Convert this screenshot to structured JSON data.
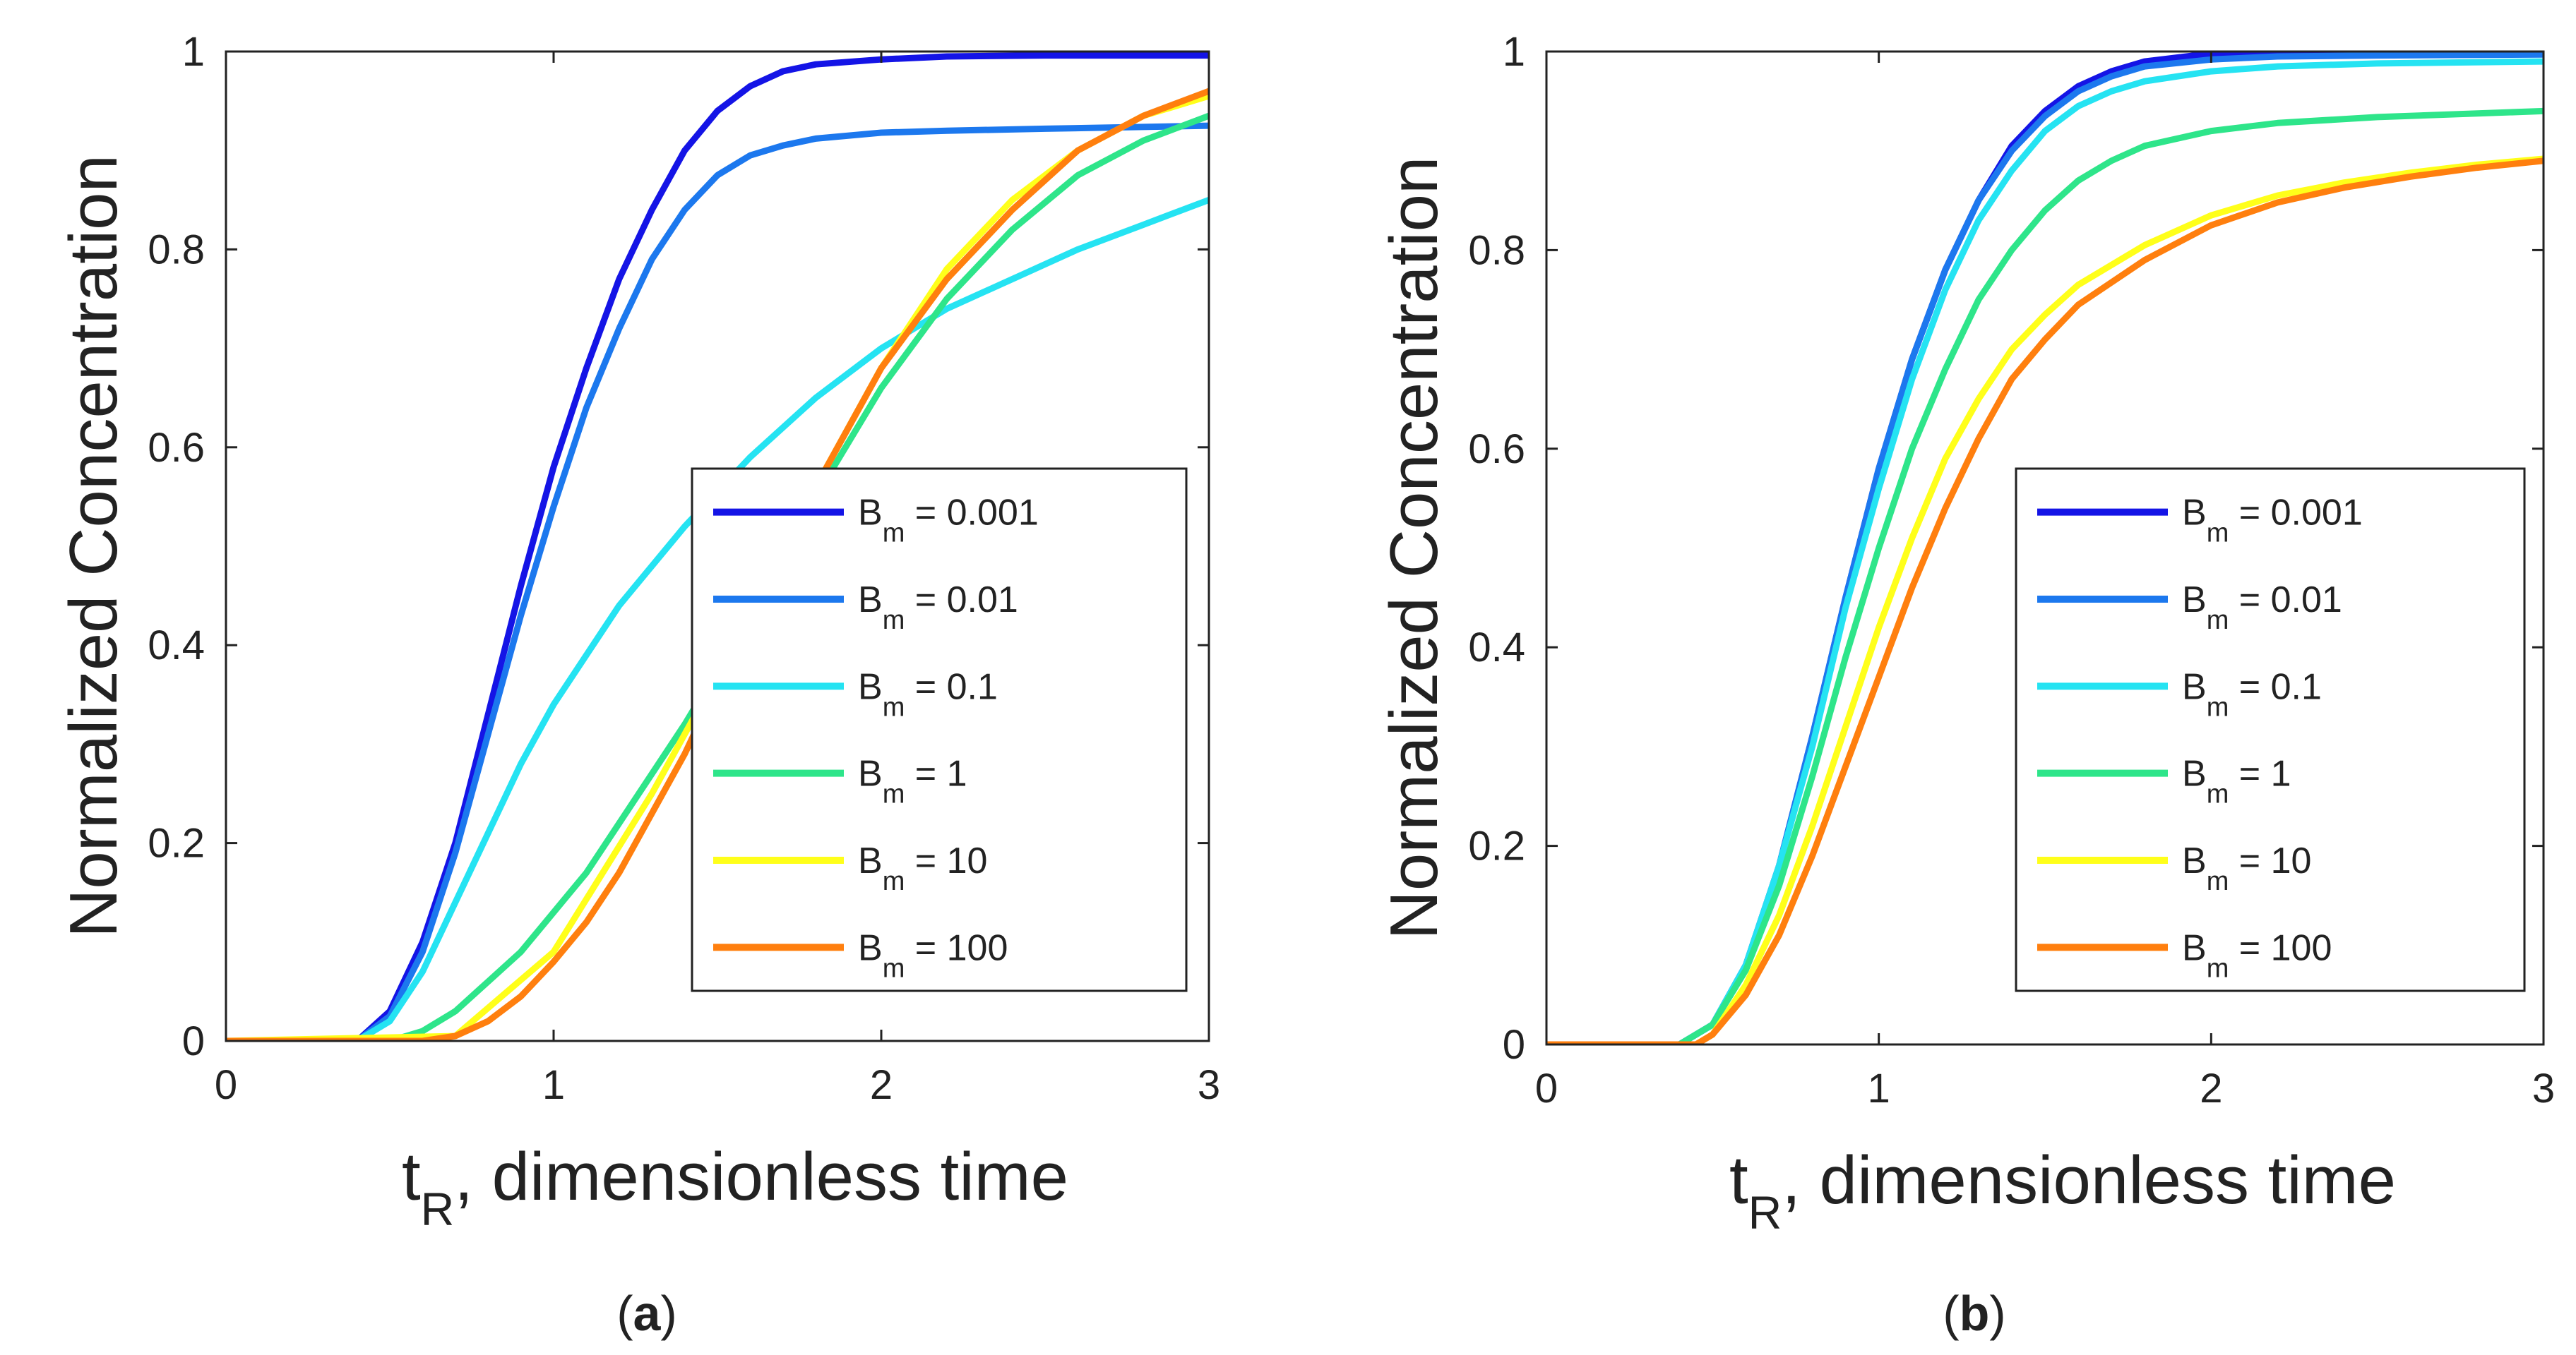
{
  "chart_data": [
    {
      "type": "line",
      "panel_label": "a",
      "xlabel": "t_R, dimensionless time",
      "xlabel_main": "t",
      "xlabel_sub": "R",
      "xlabel_rest": ", dimensionless time",
      "ylabel": "Normalized Concentration",
      "xlim": [
        0,
        3
      ],
      "ylim": [
        0,
        1
      ],
      "xticks": [
        0,
        1,
        2,
        3
      ],
      "yticks": [
        0,
        0.2,
        0.4,
        0.6,
        0.8,
        1
      ],
      "legend_position": "lower-right",
      "series": [
        {
          "name": "B_m = 0.001",
          "label_main": "B",
          "label_sub": "m",
          "label_value": " = 0.001",
          "color": "#1414e6",
          "x": [
            0,
            0.4,
            0.5,
            0.6,
            0.7,
            0.8,
            0.9,
            1.0,
            1.1,
            1.2,
            1.3,
            1.4,
            1.5,
            1.6,
            1.7,
            1.8,
            2.0,
            2.2,
            2.5,
            3.0
          ],
          "y": [
            0,
            0,
            0.03,
            0.1,
            0.2,
            0.33,
            0.46,
            0.58,
            0.68,
            0.77,
            0.84,
            0.9,
            0.94,
            0.965,
            0.98,
            0.987,
            0.992,
            0.995,
            0.996,
            0.996
          ]
        },
        {
          "name": "B_m = 0.01",
          "label_main": "B",
          "label_sub": "m",
          "label_value": " = 0.01",
          "color": "#1c78ee",
          "x": [
            0,
            0.4,
            0.5,
            0.6,
            0.7,
            0.8,
            0.9,
            1.0,
            1.1,
            1.2,
            1.3,
            1.4,
            1.5,
            1.6,
            1.7,
            1.8,
            2.0,
            2.2,
            2.5,
            3.0
          ],
          "y": [
            0,
            0,
            0.025,
            0.09,
            0.19,
            0.31,
            0.43,
            0.54,
            0.64,
            0.72,
            0.79,
            0.84,
            0.875,
            0.895,
            0.905,
            0.912,
            0.918,
            0.92,
            0.922,
            0.925
          ]
        },
        {
          "name": "B_m = 0.1",
          "label_main": "B",
          "label_sub": "m",
          "label_value": " = 0.1",
          "color": "#25e3f2",
          "x": [
            0,
            0.4,
            0.5,
            0.6,
            0.7,
            0.8,
            0.9,
            1.0,
            1.2,
            1.4,
            1.6,
            1.8,
            2.0,
            2.2,
            2.4,
            2.6,
            2.8,
            3.0
          ],
          "y": [
            0,
            0,
            0.02,
            0.07,
            0.14,
            0.21,
            0.28,
            0.34,
            0.44,
            0.52,
            0.59,
            0.65,
            0.7,
            0.74,
            0.77,
            0.8,
            0.825,
            0.85
          ]
        },
        {
          "name": "B_m = 1",
          "label_main": "B",
          "label_sub": "m",
          "label_value": " = 1",
          "color": "#2ee58a",
          "x": [
            0,
            0.5,
            0.6,
            0.7,
            0.8,
            0.9,
            1.0,
            1.1,
            1.2,
            1.3,
            1.4,
            1.6,
            1.8,
            2.0,
            2.2,
            2.4,
            2.6,
            2.8,
            3.0
          ],
          "y": [
            0,
            0,
            0.01,
            0.03,
            0.06,
            0.09,
            0.13,
            0.17,
            0.22,
            0.27,
            0.32,
            0.43,
            0.55,
            0.66,
            0.75,
            0.82,
            0.875,
            0.91,
            0.935
          ]
        },
        {
          "name": "B_m = 10",
          "label_main": "B",
          "label_sub": "m",
          "label_value": " = 10",
          "color": "#ffff1a",
          "x": [
            0,
            0.7,
            1.0,
            1.3,
            1.6,
            1.8,
            2.0,
            2.2,
            2.4,
            2.6,
            2.8,
            3.0
          ],
          "y": [
            0,
            0.005,
            0.09,
            0.25,
            0.43,
            0.56,
            0.68,
            0.78,
            0.85,
            0.9,
            0.935,
            0.955
          ]
        },
        {
          "name": "B_m = 100",
          "label_main": "B",
          "label_sub": "m",
          "label_value": " = 100",
          "color": "#ff7f0e",
          "x": [
            0,
            0.6,
            0.7,
            0.8,
            0.9,
            1.0,
            1.1,
            1.2,
            1.3,
            1.4,
            1.5,
            1.6,
            1.7,
            1.8,
            1.9,
            2.0,
            2.2,
            2.4,
            2.6,
            2.8,
            3.0
          ],
          "y": [
            0,
            0,
            0.005,
            0.02,
            0.045,
            0.08,
            0.12,
            0.17,
            0.23,
            0.29,
            0.36,
            0.43,
            0.5,
            0.56,
            0.62,
            0.68,
            0.77,
            0.84,
            0.9,
            0.935,
            0.96
          ]
        }
      ]
    },
    {
      "type": "line",
      "panel_label": "b",
      "xlabel": "t_R, dimensionless time",
      "xlabel_main": "t",
      "xlabel_sub": "R",
      "xlabel_rest": ", dimensionless time",
      "ylabel": "Normalized Concentration",
      "xlim": [
        0,
        3
      ],
      "ylim": [
        0,
        1
      ],
      "xticks": [
        0,
        1,
        2,
        3
      ],
      "yticks": [
        0,
        0.2,
        0.4,
        0.6,
        0.8,
        1
      ],
      "legend_position": "lower-right",
      "series": [
        {
          "name": "B_m = 0.001",
          "label_main": "B",
          "label_sub": "m",
          "label_value": " = 0.001",
          "color": "#1414e6",
          "x": [
            0,
            0.4,
            0.5,
            0.6,
            0.7,
            0.8,
            0.9,
            1.0,
            1.1,
            1.2,
            1.3,
            1.4,
            1.5,
            1.6,
            1.7,
            1.8,
            2.0,
            2.2,
            2.5,
            3.0
          ],
          "y": [
            0,
            0,
            0.02,
            0.08,
            0.18,
            0.31,
            0.45,
            0.58,
            0.69,
            0.78,
            0.85,
            0.905,
            0.94,
            0.965,
            0.98,
            0.99,
            0.998,
            1.0,
            1.0,
            1.0
          ]
        },
        {
          "name": "B_m = 0.01",
          "label_main": "B",
          "label_sub": "m",
          "label_value": " = 0.01",
          "color": "#1c78ee",
          "x": [
            0,
            0.4,
            0.5,
            0.6,
            0.7,
            0.8,
            0.9,
            1.0,
            1.1,
            1.2,
            1.3,
            1.4,
            1.5,
            1.6,
            1.7,
            1.8,
            2.0,
            2.2,
            2.5,
            3.0
          ],
          "y": [
            0,
            0,
            0.02,
            0.08,
            0.18,
            0.31,
            0.45,
            0.58,
            0.69,
            0.78,
            0.85,
            0.9,
            0.935,
            0.96,
            0.975,
            0.985,
            0.992,
            0.995,
            0.996,
            0.997
          ]
        },
        {
          "name": "B_m = 0.1",
          "label_main": "B",
          "label_sub": "m",
          "label_value": " = 0.1",
          "color": "#25e3f2",
          "x": [
            0,
            0.4,
            0.5,
            0.6,
            0.7,
            0.8,
            0.9,
            1.0,
            1.1,
            1.2,
            1.3,
            1.4,
            1.5,
            1.6,
            1.7,
            1.8,
            2.0,
            2.2,
            2.5,
            3.0
          ],
          "y": [
            0,
            0,
            0.02,
            0.08,
            0.18,
            0.3,
            0.44,
            0.56,
            0.67,
            0.76,
            0.83,
            0.88,
            0.92,
            0.945,
            0.96,
            0.97,
            0.98,
            0.985,
            0.988,
            0.99
          ]
        },
        {
          "name": "B_m = 1",
          "label_main": "B",
          "label_sub": "m",
          "label_value": " = 1",
          "color": "#2ee58a",
          "x": [
            0,
            0.4,
            0.5,
            0.6,
            0.7,
            0.8,
            0.9,
            1.0,
            1.1,
            1.2,
            1.3,
            1.4,
            1.5,
            1.6,
            1.7,
            1.8,
            2.0,
            2.2,
            2.5,
            3.0
          ],
          "y": [
            0,
            0,
            0.02,
            0.075,
            0.16,
            0.27,
            0.39,
            0.5,
            0.6,
            0.68,
            0.75,
            0.8,
            0.84,
            0.87,
            0.89,
            0.905,
            0.92,
            0.928,
            0.934,
            0.94
          ]
        },
        {
          "name": "B_m = 10",
          "label_main": "B",
          "label_sub": "m",
          "label_value": " = 10",
          "color": "#ffff1a",
          "x": [
            0,
            0.45,
            0.5,
            0.6,
            0.7,
            0.8,
            0.9,
            1.0,
            1.1,
            1.2,
            1.3,
            1.4,
            1.5,
            1.6,
            1.8,
            2.0,
            2.2,
            2.4,
            2.6,
            2.8,
            3.0
          ],
          "y": [
            0,
            0,
            0.01,
            0.06,
            0.13,
            0.22,
            0.32,
            0.42,
            0.51,
            0.59,
            0.65,
            0.7,
            0.735,
            0.765,
            0.805,
            0.835,
            0.855,
            0.868,
            0.878,
            0.886,
            0.892
          ]
        },
        {
          "name": "B_m = 100",
          "label_main": "B",
          "label_sub": "m",
          "label_value": " = 100",
          "color": "#ff7f0e",
          "x": [
            0,
            0.45,
            0.5,
            0.6,
            0.7,
            0.8,
            0.9,
            1.0,
            1.1,
            1.2,
            1.3,
            1.4,
            1.5,
            1.6,
            1.8,
            2.0,
            2.2,
            2.4,
            2.6,
            2.8,
            3.0
          ],
          "y": [
            0,
            0,
            0.01,
            0.05,
            0.11,
            0.19,
            0.28,
            0.37,
            0.46,
            0.54,
            0.61,
            0.67,
            0.71,
            0.745,
            0.79,
            0.825,
            0.848,
            0.863,
            0.874,
            0.883,
            0.89
          ]
        }
      ]
    }
  ]
}
